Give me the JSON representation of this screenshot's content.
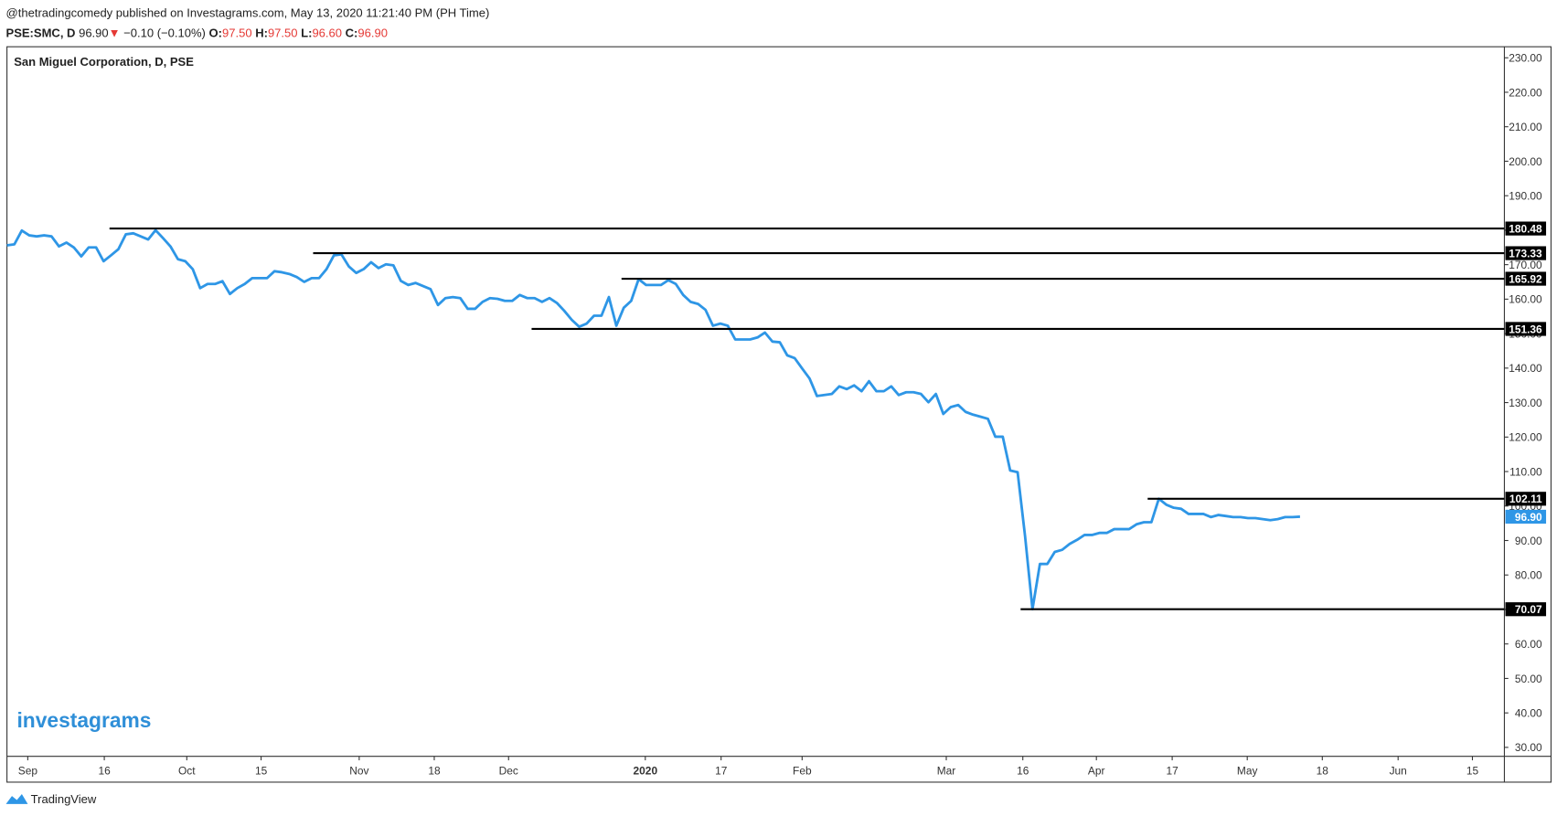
{
  "header": {
    "publisher": "@thetradingcomedy published on Investagrams.com, May 13, 2020 11:21:40 PM (PH Time)",
    "symbol": "PSE:SMC, D",
    "price": "96.90",
    "arrow": "▼",
    "change": "−0.10 (−0.10%)",
    "o_label": "O:",
    "o": "97.50",
    "h_label": "H:",
    "h": "97.50",
    "l_label": "L:",
    "l": "96.60",
    "c_label": "C:",
    "c": "96.90"
  },
  "watermark": "investagrams",
  "footer": "TradingView",
  "chart_data": {
    "type": "line",
    "title": "San Miguel Corporation, D, PSE",
    "color": "#2e96e6",
    "values": [
      175.6,
      175.9,
      179.9,
      178.5,
      178.2,
      178.5,
      178.2,
      175.3,
      176.4,
      175.0,
      172.4,
      175.0,
      175.0,
      171.0,
      172.7,
      174.5,
      178.8,
      179.1,
      178.2,
      177.3,
      180.0,
      177.7,
      175.3,
      171.6,
      171.0,
      168.7,
      163.2,
      164.4,
      164.4,
      165.2,
      161.5,
      163.2,
      164.4,
      166.1,
      166.1,
      166.1,
      168.1,
      167.8,
      167.3,
      166.4,
      165.0,
      166.1,
      166.1,
      168.7,
      172.7,
      173.0,
      169.5,
      167.6,
      168.7,
      170.7,
      169.0,
      170.1,
      169.8,
      165.3,
      164.1,
      164.7,
      163.8,
      162.9,
      158.3,
      160.3,
      160.6,
      160.3,
      157.2,
      157.2,
      159.2,
      160.3,
      160.1,
      159.5,
      159.5,
      161.2,
      160.3,
      160.3,
      159.2,
      160.3,
      158.9,
      156.6,
      154.0,
      152.0,
      152.9,
      155.2,
      155.2,
      160.6,
      152.3,
      157.5,
      159.5,
      165.8,
      164.1,
      164.1,
      164.1,
      165.5,
      164.4,
      161.2,
      159.2,
      158.6,
      156.9,
      152.3,
      152.9,
      152.3,
      148.3,
      148.3,
      148.3,
      148.9,
      150.3,
      147.7,
      147.5,
      143.7,
      142.9,
      139.9,
      137.0,
      131.9,
      132.2,
      132.5,
      134.7,
      133.9,
      135.0,
      133.3,
      136.2,
      133.3,
      133.3,
      134.7,
      132.2,
      133.0,
      133.0,
      132.5,
      130.1,
      132.5,
      126.7,
      128.7,
      129.3,
      127.3,
      126.5,
      125.9,
      125.3,
      120.1,
      120.1,
      110.3,
      109.8,
      91.3,
      70.1,
      83.2,
      83.2,
      86.7,
      87.3,
      89.0,
      90.2,
      91.6,
      91.6,
      92.2,
      92.2,
      93.3,
      93.3,
      93.3,
      94.7,
      95.3,
      95.3,
      102.1,
      100.4,
      99.5,
      99.2,
      97.7,
      97.7,
      97.7,
      96.8,
      97.4,
      97.1,
      96.8,
      96.8,
      96.5,
      96.5,
      96.2,
      95.9,
      96.2,
      96.8,
      96.8,
      96.9
    ],
    "last_value_label": "96.90",
    "xlim": [
      0,
      201.5
    ],
    "xticks": [
      {
        "value": 2.8,
        "label": "Sep"
      },
      {
        "value": 13.1,
        "label": "16"
      },
      {
        "value": 24.2,
        "label": "Oct"
      },
      {
        "value": 34.2,
        "label": "15"
      },
      {
        "value": 47.4,
        "label": "Nov"
      },
      {
        "value": 57.5,
        "label": "18"
      },
      {
        "value": 67.5,
        "label": "Dec"
      },
      {
        "value": 85.9,
        "label": "2020"
      },
      {
        "value": 96.1,
        "label": "17"
      },
      {
        "value": 107.0,
        "label": "Feb"
      },
      {
        "value": 126.4,
        "label": "Mar"
      },
      {
        "value": 136.7,
        "label": "16"
      },
      {
        "value": 146.6,
        "label": "Apr"
      },
      {
        "value": 156.8,
        "label": "17"
      },
      {
        "value": 166.9,
        "label": "May"
      },
      {
        "value": 177.0,
        "label": "18"
      },
      {
        "value": 187.2,
        "label": "Jun"
      },
      {
        "value": 197.2,
        "label": "15"
      }
    ],
    "ylim": [
      27.4,
      233.2
    ],
    "yticks": [
      {
        "value": 230,
        "label": "230.00"
      },
      {
        "value": 220,
        "label": "220.00"
      },
      {
        "value": 210,
        "label": "210.00"
      },
      {
        "value": 200,
        "label": "200.00"
      },
      {
        "value": 190,
        "label": "190.00"
      },
      {
        "value": 180,
        "label": "180.00"
      },
      {
        "value": 170,
        "label": "170.00"
      },
      {
        "value": 160,
        "label": "160.00"
      },
      {
        "value": 150,
        "label": "150.00"
      },
      {
        "value": 140,
        "label": "140.00"
      },
      {
        "value": 130,
        "label": "130.00"
      },
      {
        "value": 120,
        "label": "120.00"
      },
      {
        "value": 110,
        "label": "110.00"
      },
      {
        "value": 100,
        "label": "100.00"
      },
      {
        "value": 90,
        "label": "90.00"
      },
      {
        "value": 80,
        "label": "80.00"
      },
      {
        "value": 70,
        "label": "70.00"
      },
      {
        "value": 60,
        "label": "60.00"
      },
      {
        "value": 50,
        "label": "50.00"
      },
      {
        "value": 40,
        "label": "40.00"
      },
      {
        "value": 30,
        "label": "30.00"
      }
    ],
    "hlines": [
      {
        "value": 180.48,
        "start": 13.8
      },
      {
        "value": 173.33,
        "start": 41.2
      },
      {
        "value": 165.92,
        "start": 82.7
      },
      {
        "value": 151.36,
        "start": 70.6
      },
      {
        "value": 102.11,
        "start": 153.5
      },
      {
        "value": 70.07,
        "start": 136.4
      }
    ],
    "grid": false
  }
}
